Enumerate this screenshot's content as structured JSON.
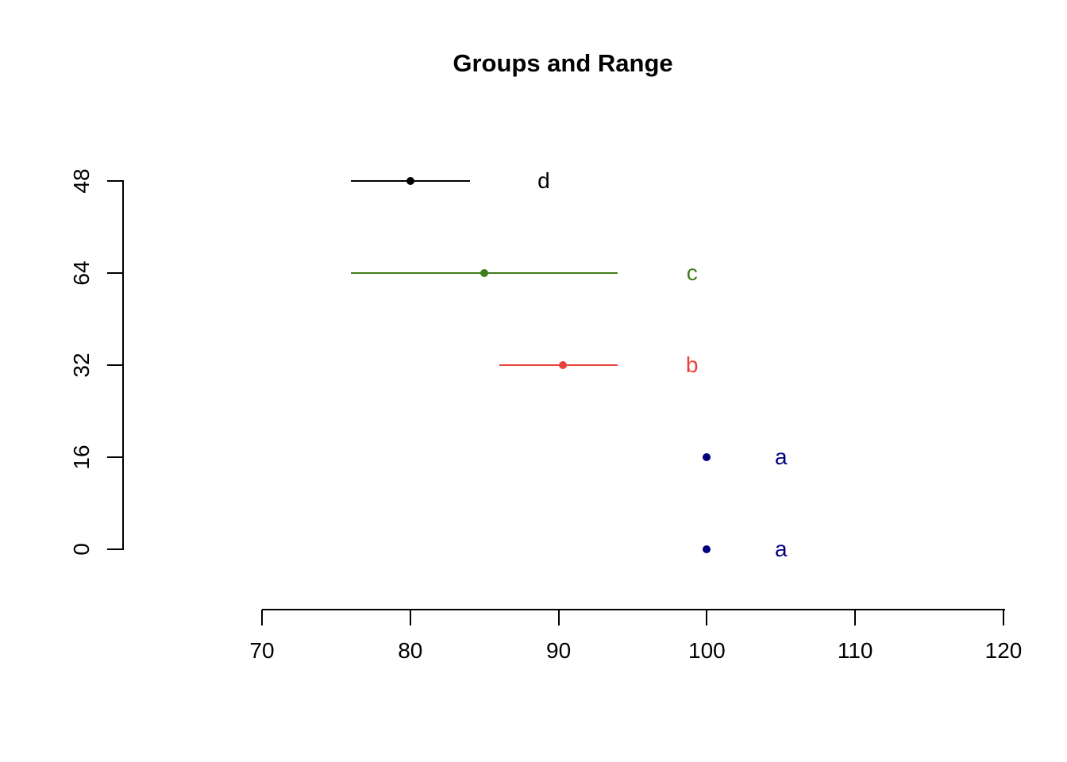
{
  "chart_data": {
    "type": "scatter",
    "title": "Groups and Range",
    "xlabel": "",
    "ylabel": "",
    "xlim": [
      70,
      120
    ],
    "x_ticks": [
      70,
      80,
      90,
      100,
      110,
      120
    ],
    "y_ticks": [
      "48",
      "64",
      "32",
      "16",
      "0"
    ],
    "grid": false,
    "legend": "none",
    "series": [
      {
        "row": "48",
        "group": "d",
        "x": 80,
        "range": [
          76,
          84
        ],
        "label_x": 89,
        "color": "#000000"
      },
      {
        "row": "64",
        "group": "c",
        "x": 85,
        "range": [
          76,
          94
        ],
        "label_x": 99,
        "color": "#3f7d1a"
      },
      {
        "row": "32",
        "group": "b",
        "x": 90.3,
        "range": [
          86,
          94
        ],
        "label_x": 99,
        "color": "#e8433b"
      },
      {
        "row": "16",
        "group": "a",
        "x": 100,
        "range": null,
        "label_x": 105,
        "color": "#000080"
      },
      {
        "row": "0",
        "group": "a",
        "x": 100,
        "range": null,
        "label_x": 105,
        "color": "#000080"
      }
    ]
  }
}
